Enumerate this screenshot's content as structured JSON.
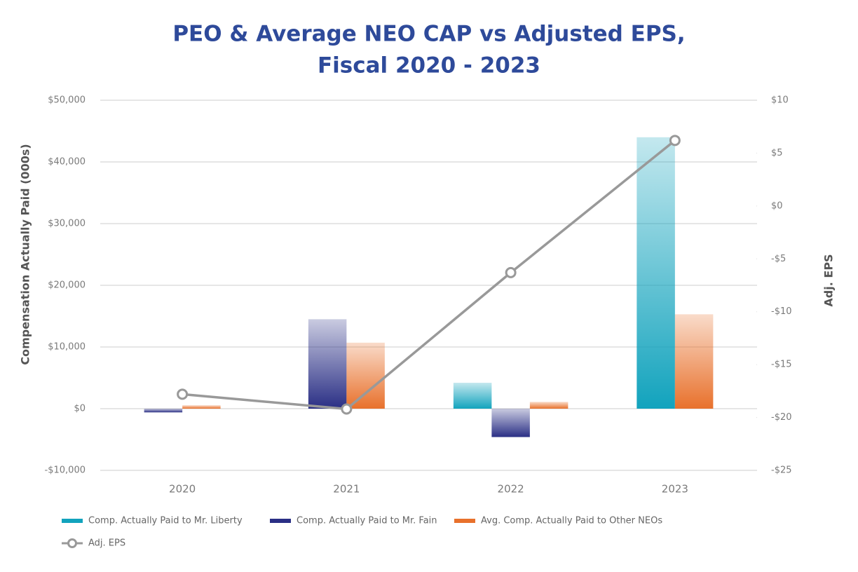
{
  "chart_data": {
    "type": "bar",
    "title": [
      "PEO & Average NEO CAP vs Adjusted EPS,",
      "Fiscal 2020 - 2023"
    ],
    "y_label": "Compensation Actually Paid (000s)",
    "y2_label": "Adj. EPS",
    "categories": [
      "2020",
      "2021",
      "2022",
      "2023"
    ],
    "series": [
      {
        "name": "Comp. Actually Paid to Mr. Liberty",
        "type": "bar",
        "color": "#12a3bd",
        "values": [
          null,
          null,
          4200,
          44000
        ]
      },
      {
        "name": "Comp. Actually Paid to Mr. Fain",
        "type": "bar",
        "color": "#2a2f85",
        "values": [
          -600,
          14500,
          -4600,
          null
        ]
      },
      {
        "name": "Avg. Comp. Actually Paid to Other NEOs",
        "type": "bar",
        "color": "#e8712c",
        "values": [
          550,
          10700,
          1100,
          15300
        ]
      },
      {
        "name": "Adj. EPS",
        "type": "line",
        "axis": "y2",
        "color": "#999999",
        "values": [
          -17.8,
          -19.2,
          -6.3,
          6.2
        ]
      }
    ],
    "ylim": [
      -10000,
      50000
    ],
    "yticks": [
      {
        "value": -10000,
        "label": "-$10,000"
      },
      {
        "value": 0,
        "label": "$0"
      },
      {
        "value": 10000,
        "label": "$10,000"
      },
      {
        "value": 20000,
        "label": "$20,000"
      },
      {
        "value": 30000,
        "label": "$30,000"
      },
      {
        "value": 40000,
        "label": "$40,000"
      },
      {
        "value": 50000,
        "label": "$50,000"
      }
    ],
    "y2lim": [
      -25,
      10
    ],
    "y2ticks": [
      {
        "value": -25,
        "label": "-$25"
      },
      {
        "value": -20,
        "label": "-$20"
      },
      {
        "value": -15,
        "label": "-$15"
      },
      {
        "value": -10,
        "label": "-$10"
      },
      {
        "value": -5,
        "label": "-$5"
      },
      {
        "value": 0,
        "label": "$0"
      },
      {
        "value": 5,
        "label": "$5"
      },
      {
        "value": 10,
        "label": "$10"
      }
    ],
    "grid": true
  }
}
